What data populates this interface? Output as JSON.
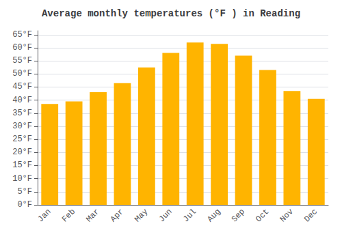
{
  "chart_data": {
    "type": "bar",
    "title": "Average monthly temperatures (°F ) in Reading",
    "categories": [
      "Jan",
      "Feb",
      "Mar",
      "Apr",
      "May",
      "Jun",
      "Jul",
      "Aug",
      "Sep",
      "Oct",
      "Nov",
      "Dec"
    ],
    "values": [
      38.5,
      39.5,
      43.0,
      46.5,
      52.5,
      58.0,
      62.0,
      61.5,
      57.0,
      51.5,
      43.5,
      40.5
    ],
    "color": "#ffb400",
    "ylim": [
      0,
      66.5
    ],
    "yticks": [
      {
        "value": 0,
        "label": "0°F"
      },
      {
        "value": 5,
        "label": "5°F"
      },
      {
        "value": 10,
        "label": "10°F"
      },
      {
        "value": 15,
        "label": "15°F"
      },
      {
        "value": 20,
        "label": "20°F"
      },
      {
        "value": 25,
        "label": "25°F"
      },
      {
        "value": 30,
        "label": "30°F"
      },
      {
        "value": 35,
        "label": "35°F"
      },
      {
        "value": 40,
        "label": "40°F"
      },
      {
        "value": 45,
        "label": "45°F"
      },
      {
        "value": 50,
        "label": "50°F"
      },
      {
        "value": 55,
        "label": "55°F"
      },
      {
        "value": 60,
        "label": "60°F"
      },
      {
        "value": 65,
        "label": "65°F"
      }
    ],
    "grid": true
  }
}
